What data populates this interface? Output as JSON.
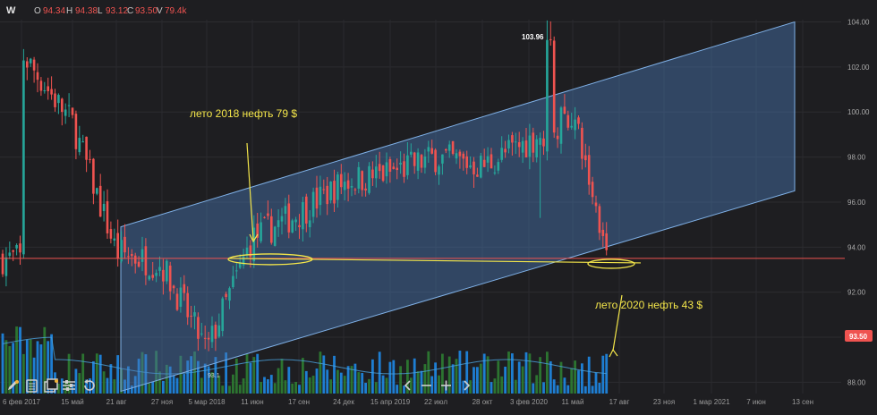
{
  "legend": {
    "symbol": "W",
    "open_key": "O",
    "open": "94.34",
    "high_key": "H",
    "high": "94.38",
    "low_key": "L",
    "low": "93.12",
    "close_key": "C",
    "close": "93.50",
    "volume_key": "V",
    "volume": "79.4k"
  },
  "annotations": {
    "summer_2018": "лето 2018 нефть 79 $",
    "summer_2020": "лето 2020 нефть 43 $",
    "high_label": "103.96",
    "current_price_label": "93.50",
    "faint_label": "93.1"
  },
  "colors": {
    "background": "#1e1e21",
    "up": "#26a69a",
    "down": "#ef5350",
    "channel_fill": "#4a78b4",
    "annotation": "#f4e64a",
    "current_line": "#ef5350",
    "volume_up": "#2e7d32",
    "volume_down": "#1e88e5"
  },
  "toolbar": {
    "icons": [
      "pencil-icon",
      "document-icon",
      "layers-icon",
      "sliders-icon",
      "undo-icon"
    ],
    "nav_icons": [
      "chevron-left-icon",
      "minus-icon",
      "plus-icon",
      "chevron-right-icon"
    ]
  },
  "chart_data": {
    "type": "candlestick",
    "title": "",
    "interval": "weekly",
    "x_tick_labels": [
      "6 фев 2017",
      "15 май",
      "21 авг",
      "27 ноя",
      "5 мар 2018",
      "11 июн",
      "17 сен",
      "24 дек",
      "15 апр 2019",
      "22 июл",
      "28 окт",
      "3 фев 2020",
      "11 май",
      "17 авг",
      "23 ноя",
      "1 мар 2021",
      "7 июн",
      "13 сен"
    ],
    "y_tick_labels": [
      "88.00",
      "90.00",
      "92.00",
      "94.00",
      "96.00",
      "98.00",
      "100.00",
      "102.00",
      "104.00"
    ],
    "ylim": [
      87.5,
      104.1
    ],
    "close_path": [
      [
        "6 фев 2017",
        102.6
      ],
      [
        "15 май",
        99.5
      ],
      [
        "21 авг",
        93.8
      ],
      [
        "27 ноя",
        93.2
      ],
      [
        "5 мар 2018",
        89.4
      ],
      [
        "11 июн",
        94.4
      ],
      [
        "17 сен",
        95.5
      ],
      [
        "24 дек",
        96.9
      ],
      [
        "15 апр 2019",
        97.3
      ],
      [
        "22 июл",
        98.0
      ],
      [
        "28 окт",
        97.6
      ],
      [
        "3 фев 2020",
        98.7
      ],
      [
        "11 май",
        99.9
      ],
      [
        "17 авг",
        93.5
      ]
    ],
    "high": 103.96,
    "last_close": 93.5,
    "last_bar": {
      "open": 94.34,
      "high": 94.38,
      "low": 93.12,
      "close": 93.5,
      "volume": "79.4k"
    },
    "channel": {
      "upper": [
        [
          "21 авг",
          94.9
        ],
        [
          "13 сен",
          104.0
        ]
      ],
      "lower": [
        [
          "21 авг",
          87.6
        ],
        [
          "13 сен",
          96.5
        ]
      ]
    },
    "horizontal_lines": [
      {
        "value": 93.5,
        "label": "93.50"
      }
    ],
    "grid": true,
    "volume_pane": true
  }
}
